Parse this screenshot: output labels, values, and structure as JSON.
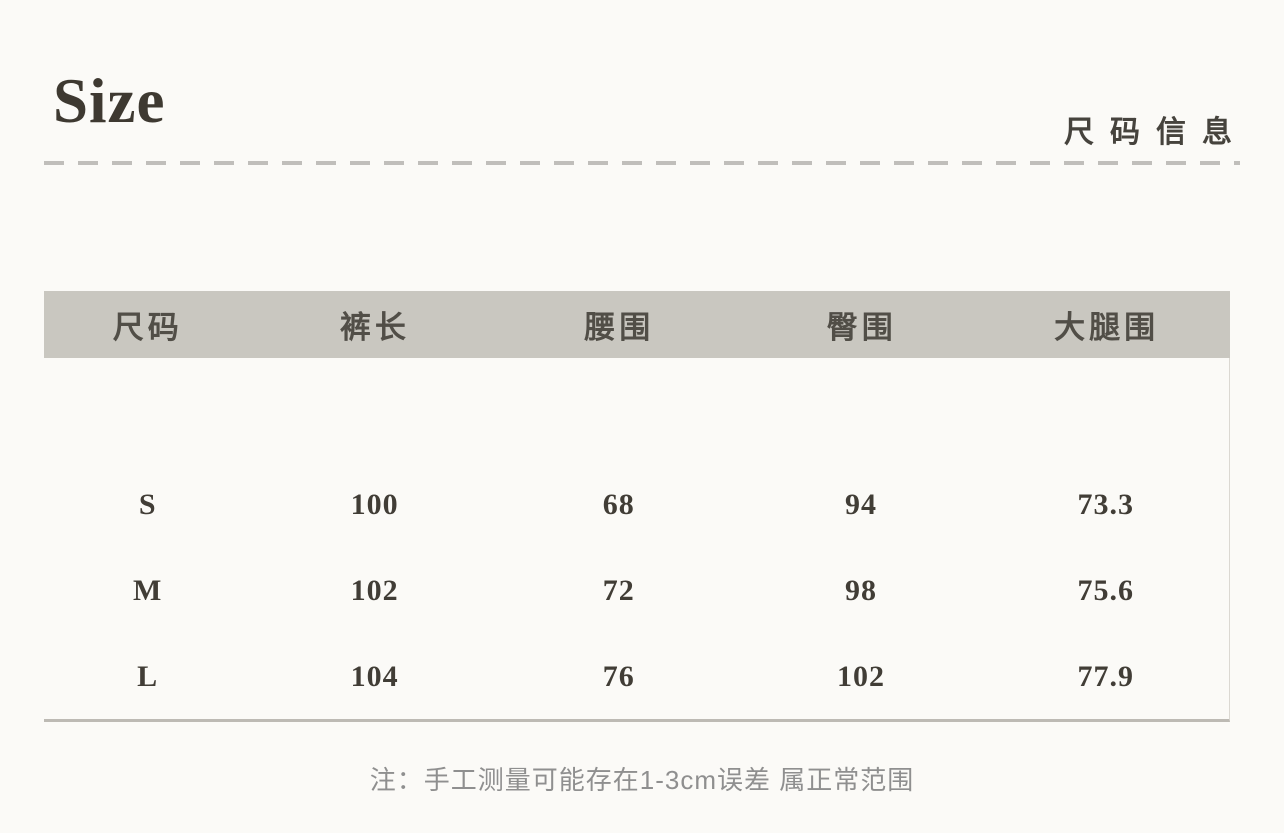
{
  "header": {
    "title": "Size",
    "subtitle": "尺码信息"
  },
  "table": {
    "columns": [
      "尺码",
      "裤长",
      "腰围",
      "臀围",
      "大腿围"
    ],
    "rows": [
      {
        "cells": [
          "S",
          "100",
          "68",
          "94",
          "73.3"
        ]
      },
      {
        "cells": [
          "M",
          "102",
          "72",
          "98",
          "75.6"
        ]
      },
      {
        "cells": [
          "L",
          "104",
          "76",
          "102",
          "77.9"
        ]
      }
    ]
  },
  "note": {
    "text": "注：手工测量可能存在1-3cm误差 属正常范围"
  },
  "colors": {
    "page_background": "#fbfaf7",
    "table_header_background": "#c9c7c0",
    "title_text": "#3e3931",
    "subtitle_text": "#46433d",
    "header_text": "#514e47",
    "body_text": "#413d36",
    "divider": "#b6b4b0",
    "table_bottom_rule": "#bdbab4",
    "note_text": "#8f8f8f"
  }
}
